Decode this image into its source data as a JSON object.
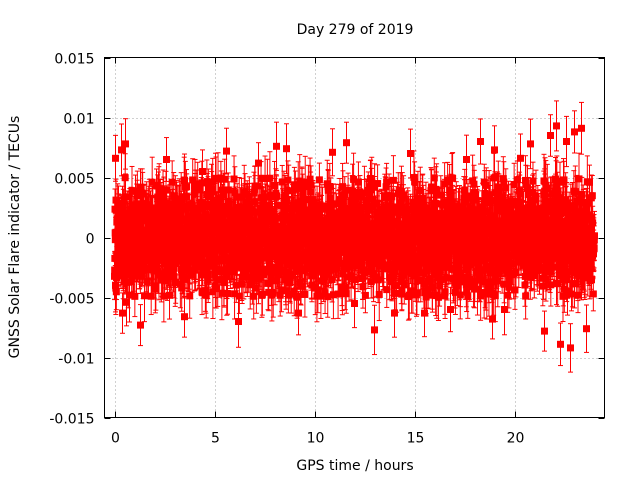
{
  "chart_data": {
    "type": "scatter",
    "title": "Day 279 of 2019",
    "xlabel": "GPS time / hours",
    "ylabel": "GNSS Solar Flare indicator / TECUs",
    "xlim": [
      -0.5,
      24.5
    ],
    "ylim": [
      -0.015,
      0.015
    ],
    "x_ticks": [
      0,
      5,
      10,
      15,
      20
    ],
    "x_tick_labels": [
      "0",
      "5",
      "10",
      "15",
      "20"
    ],
    "y_ticks": [
      0.015,
      0.01,
      0.005,
      0,
      -0.005,
      -0.01,
      -0.015
    ],
    "y_tick_labels": [
      "0.015",
      "0.01",
      "0.005",
      "0",
      "-0.005",
      "-0.01",
      "-0.015"
    ],
    "grid": true,
    "color": "#ff0000",
    "marker": "filled-square-with-y-error-bars",
    "series": [
      {
        "name": "indicator",
        "x_range": [
          0,
          24
        ],
        "point_count": 2880,
        "bulk_range": [
          -0.005,
          0.005
        ],
        "typical_error": 0.0018,
        "outliers": [
          {
            "x": 0.05,
            "y": 0.0066
          },
          {
            "x": 0.35,
            "y": 0.0073
          },
          {
            "x": 0.55,
            "y": 0.0078
          },
          {
            "x": 0.4,
            "y": -0.0063
          },
          {
            "x": 1.3,
            "y": -0.0073
          },
          {
            "x": 2.6,
            "y": 0.0065
          },
          {
            "x": 3.5,
            "y": -0.0066
          },
          {
            "x": 5.6,
            "y": 0.0072
          },
          {
            "x": 6.2,
            "y": -0.007
          },
          {
            "x": 7.2,
            "y": 0.0062
          },
          {
            "x": 8.1,
            "y": 0.0076
          },
          {
            "x": 8.6,
            "y": 0.0074
          },
          {
            "x": 9.2,
            "y": -0.0063
          },
          {
            "x": 10.9,
            "y": 0.0071
          },
          {
            "x": 11.6,
            "y": 0.0079
          },
          {
            "x": 12.0,
            "y": -0.0055
          },
          {
            "x": 13.0,
            "y": -0.0077
          },
          {
            "x": 14.0,
            "y": -0.0063
          },
          {
            "x": 14.8,
            "y": 0.007
          },
          {
            "x": 15.5,
            "y": -0.0063
          },
          {
            "x": 17.6,
            "y": 0.0065
          },
          {
            "x": 18.3,
            "y": 0.008
          },
          {
            "x": 18.9,
            "y": -0.0068
          },
          {
            "x": 19.0,
            "y": 0.0073
          },
          {
            "x": 20.3,
            "y": 0.0066
          },
          {
            "x": 20.8,
            "y": 0.0078
          },
          {
            "x": 21.5,
            "y": -0.0078
          },
          {
            "x": 21.8,
            "y": 0.0085
          },
          {
            "x": 22.1,
            "y": 0.0093
          },
          {
            "x": 22.3,
            "y": -0.0089
          },
          {
            "x": 22.6,
            "y": 0.008
          },
          {
            "x": 22.8,
            "y": -0.0092
          },
          {
            "x": 23.0,
            "y": 0.0088
          },
          {
            "x": 23.35,
            "y": 0.0091
          },
          {
            "x": 23.6,
            "y": -0.0076
          },
          {
            "x": 0.6,
            "y": -0.0054
          },
          {
            "x": 4.4,
            "y": 0.0055
          },
          {
            "x": 16.8,
            "y": -0.006
          },
          {
            "x": 19.5,
            "y": -0.006
          }
        ]
      }
    ]
  }
}
